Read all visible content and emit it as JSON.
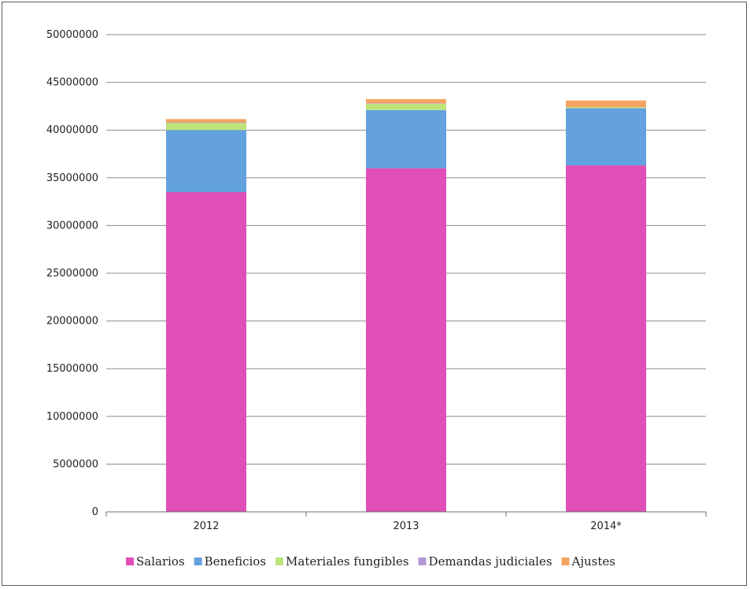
{
  "chart_data": {
    "type": "bar",
    "stacked": true,
    "categories": [
      "2012",
      "2013",
      "2014*"
    ],
    "series": [
      {
        "name": "Salarios",
        "color": "#e04fb8",
        "values": [
          33500000,
          36000000,
          36300000
        ]
      },
      {
        "name": "Beneficios",
        "color": "#63a1df",
        "values": [
          6500000,
          6100000,
          6000000
        ]
      },
      {
        "name": "Materiales fungibles",
        "color": "#bde37a",
        "values": [
          750000,
          650000,
          100000
        ]
      },
      {
        "name": "Demandas judiciales",
        "color": "#b497d6",
        "values": [
          50000,
          50000,
          0
        ]
      },
      {
        "name": "Ajustes",
        "color": "#f4a460",
        "values": [
          350000,
          450000,
          700000
        ]
      }
    ],
    "ylim": [
      0,
      50000000
    ],
    "yticks": [
      "0",
      "5000000",
      "10000000",
      "15000000",
      "20000000",
      "25000000",
      "30000000",
      "35000000",
      "40000000",
      "45000000",
      "50000000"
    ],
    "grid": true,
    "legend": "bottom"
  }
}
